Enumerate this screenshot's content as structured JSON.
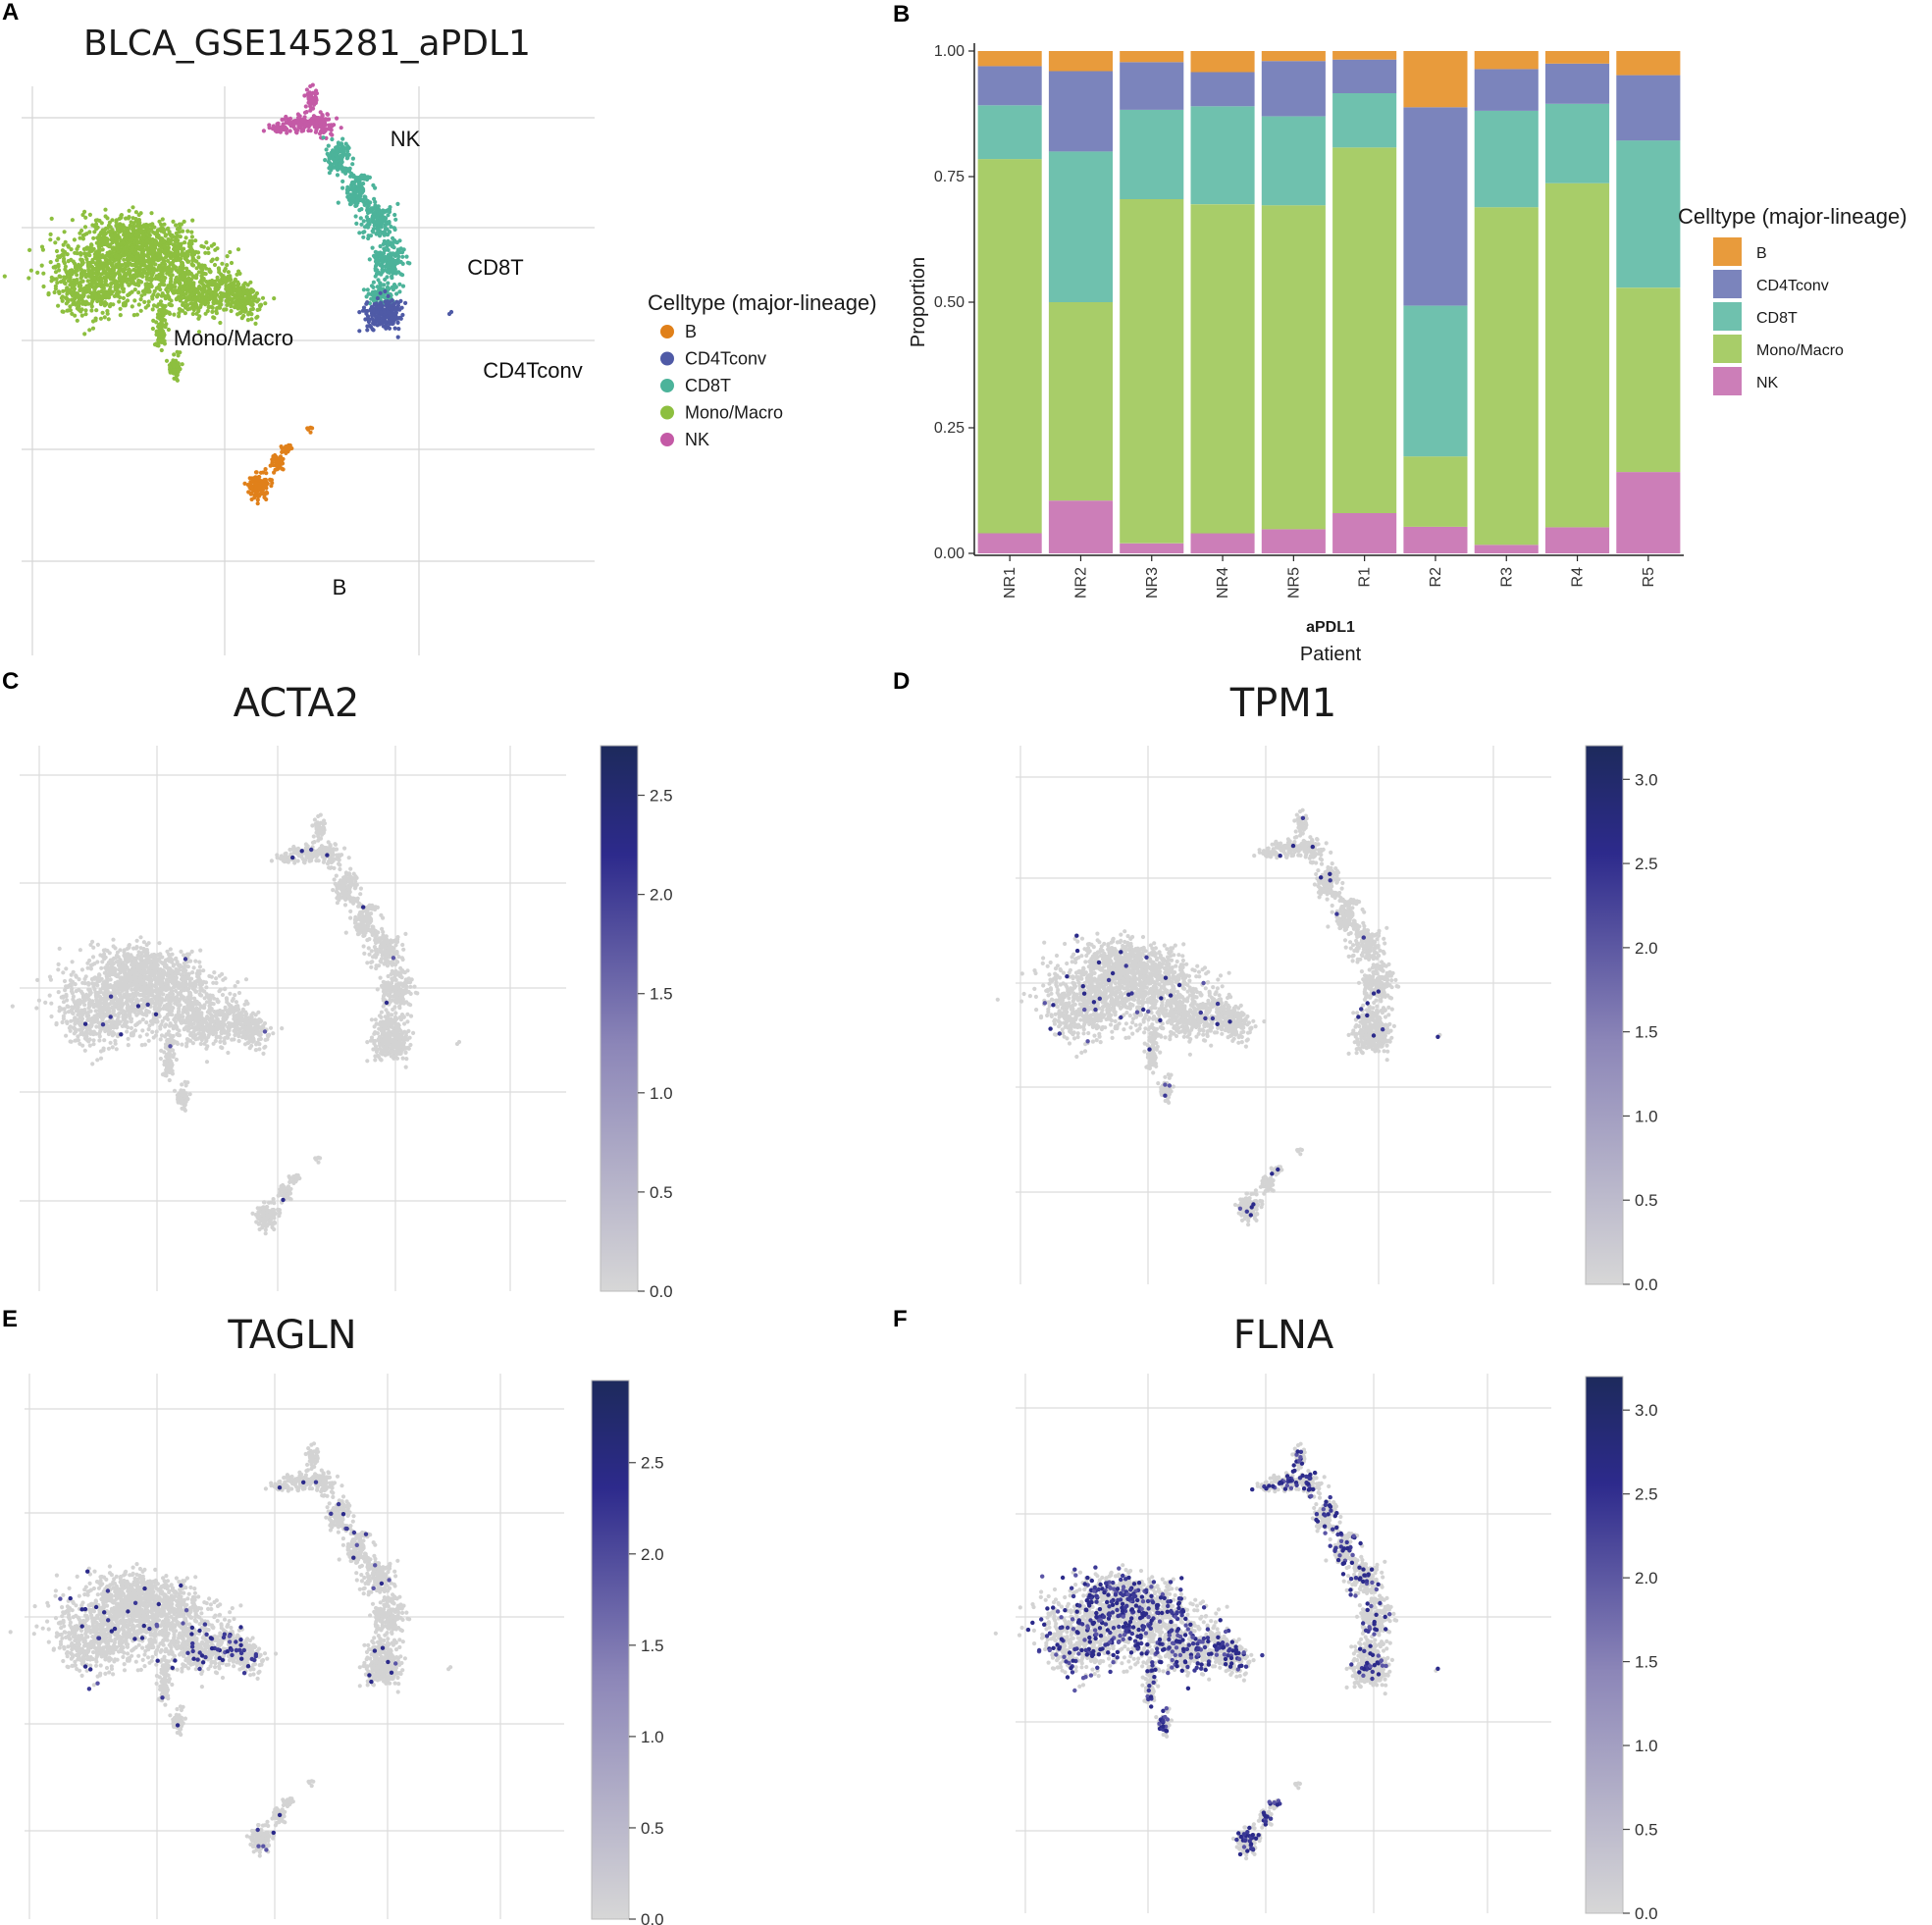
{
  "panels": {
    "A": {
      "letter": "A",
      "title": "BLCA_GSE145281_aPDL1",
      "legend_title": "Celltype (major-lineage)",
      "legend": [
        {
          "label": "B",
          "color": "#e0801a"
        },
        {
          "label": "CD4Tconv",
          "color": "#4f5aa6"
        },
        {
          "label": "CD8T",
          "color": "#4cb39a"
        },
        {
          "label": "Mono/Macro",
          "color": "#8dbf3f"
        },
        {
          "label": "NK",
          "color": "#c45aa6"
        }
      ],
      "cluster_labels": [
        "NK",
        "CD8T",
        "Mono/Macro",
        "CD4Tconv",
        "B"
      ]
    },
    "B": {
      "letter": "B",
      "legend_title": "Celltype (major-lineage)",
      "legend": [
        {
          "label": "B",
          "color": "#e89b3c"
        },
        {
          "label": "CD4Tconv",
          "color": "#7b84bc"
        },
        {
          "label": "CD8T",
          "color": "#6fc1ae"
        },
        {
          "label": "Mono/Macro",
          "color": "#a8cd69"
        },
        {
          "label": "NK",
          "color": "#cc7eb8"
        }
      ]
    },
    "C": {
      "letter": "C",
      "title": "ACTA2",
      "colorbar_ticks": [
        "2.5",
        "2.0",
        "1.5",
        "1.0",
        "0.5",
        "0.0"
      ]
    },
    "D": {
      "letter": "D",
      "title": "TPM1",
      "colorbar_ticks": [
        "3.0",
        "2.5",
        "2.0",
        "1.5",
        "1.0",
        "0.5",
        "0.0"
      ]
    },
    "E": {
      "letter": "E",
      "title": "TAGLN",
      "colorbar_ticks": [
        "2.5",
        "2.0",
        "1.5",
        "1.0",
        "0.5",
        "0.0"
      ]
    },
    "F": {
      "letter": "F",
      "title": "FLNA",
      "colorbar_ticks": [
        "3.0",
        "2.5",
        "2.0",
        "1.5",
        "1.0",
        "0.5",
        "0.0"
      ]
    }
  },
  "chart_data": [
    {
      "type": "scatter",
      "panel": "A",
      "title": "BLCA_GSE145281_aPDL1",
      "legend_title": "Celltype (major-lineage)",
      "categories": [
        "B",
        "CD4Tconv",
        "CD8T",
        "Mono/Macro",
        "NK"
      ],
      "xlabel": "",
      "ylabel": ""
    },
    {
      "type": "bar",
      "stacked": true,
      "panel": "B",
      "categories": [
        "NR1",
        "NR2",
        "NR3",
        "NR4",
        "NR5",
        "R1",
        "R2",
        "R3",
        "R4",
        "R5"
      ],
      "series": [
        {
          "name": "NK",
          "values": [
            0.04,
            0.105,
            0.02,
            0.04,
            0.048,
            0.08,
            0.053,
            0.017,
            0.052,
            0.162
          ]
        },
        {
          "name": "Mono/Macro",
          "values": [
            0.745,
            0.395,
            0.685,
            0.655,
            0.645,
            0.728,
            0.14,
            0.672,
            0.685,
            0.367
          ]
        },
        {
          "name": "CD8T",
          "values": [
            0.107,
            0.3,
            0.178,
            0.195,
            0.177,
            0.108,
            0.3,
            0.192,
            0.158,
            0.293
          ]
        },
        {
          "name": "CD4Tconv",
          "values": [
            0.078,
            0.16,
            0.095,
            0.068,
            0.11,
            0.067,
            0.395,
            0.083,
            0.08,
            0.13
          ]
        },
        {
          "name": "B",
          "values": [
            0.03,
            0.04,
            0.022,
            0.042,
            0.02,
            0.017,
            0.112,
            0.036,
            0.025,
            0.048
          ]
        }
      ],
      "yticks": [
        "0.00",
        "0.25",
        "0.50",
        "0.75",
        "1.00"
      ],
      "ylim": [
        0,
        1
      ],
      "ylabel": "Proportion",
      "xgroup_label": "aPDL1",
      "xlabel": "Patient",
      "legend_title": "Celltype (major-lineage)"
    },
    {
      "type": "scatter",
      "panel": "C",
      "title": "ACTA2",
      "colorbar_range": [
        0,
        2.75
      ],
      "colorbar_ticks": [
        2.5,
        2.0,
        1.5,
        1.0,
        0.5,
        0.0
      ]
    },
    {
      "type": "scatter",
      "panel": "D",
      "title": "TPM1",
      "colorbar_range": [
        0,
        3.2
      ],
      "colorbar_ticks": [
        3.0,
        2.5,
        2.0,
        1.5,
        1.0,
        0.5,
        0.0
      ]
    },
    {
      "type": "scatter",
      "panel": "E",
      "title": "TAGLN",
      "colorbar_range": [
        0,
        2.95
      ],
      "colorbar_ticks": [
        2.5,
        2.0,
        1.5,
        1.0,
        0.5,
        0.0
      ]
    },
    {
      "type": "scatter",
      "panel": "F",
      "title": "FLNA",
      "colorbar_range": [
        0,
        3.2
      ],
      "colorbar_ticks": [
        3.0,
        2.5,
        2.0,
        1.5,
        1.0,
        0.5,
        0.0
      ]
    }
  ]
}
